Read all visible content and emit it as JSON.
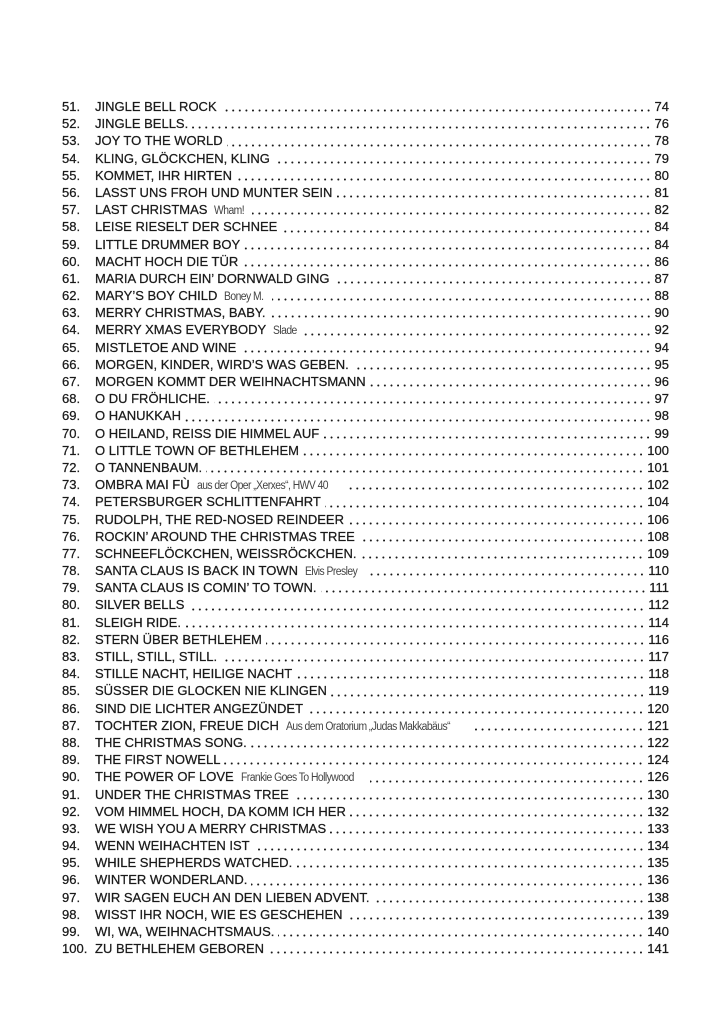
{
  "entries": [
    {
      "num": "51.",
      "title": "JINGLE BELL ROCK",
      "sub": "",
      "page": "74"
    },
    {
      "num": "52.",
      "title": "JINGLE BELLS.",
      "sub": "",
      "page": "76"
    },
    {
      "num": "53.",
      "title": "JOY TO THE WORLD",
      "sub": "",
      "page": "78"
    },
    {
      "num": "54.",
      "title": "KLING, GLÖCKCHEN, KLING",
      "sub": "",
      "page": "79"
    },
    {
      "num": "55.",
      "title": "KOMMET, IHR HIRTEN",
      "sub": "",
      "page": "80"
    },
    {
      "num": "56.",
      "title": "LASST UNS FROH UND MUNTER SEIN",
      "sub": "",
      "page": "81"
    },
    {
      "num": "57.",
      "title": "LAST CHRISTMAS",
      "sub": "Wham!",
      "page": "82"
    },
    {
      "num": "58.",
      "title": "LEISE RIESELT DER SCHNEE",
      "sub": "",
      "page": "84"
    },
    {
      "num": "59.",
      "title": "LITTLE DRUMMER BOY",
      "sub": "",
      "page": "84"
    },
    {
      "num": "60.",
      "title": "MACHT HOCH DIE TÜR",
      "sub": "",
      "page": "86"
    },
    {
      "num": "61.",
      "title": "MARIA DURCH EIN’ DORNWALD GING",
      "sub": "",
      "page": "87"
    },
    {
      "num": "62.",
      "title": "MARY’S BOY CHILD",
      "sub": "Boney M.",
      "page": "88"
    },
    {
      "num": "63.",
      "title": "MERRY CHRISTMAS, BABY.",
      "sub": "",
      "page": "90"
    },
    {
      "num": "64.",
      "title": "MERRY XMAS EVERYBODY",
      "sub": "Slade",
      "page": "92"
    },
    {
      "num": "65.",
      "title": "MISTLETOE AND WINE",
      "sub": "",
      "page": "94"
    },
    {
      "num": "66.",
      "title": "MORGEN, KINDER, WIRD’S WAS GEBEN.",
      "sub": "",
      "page": "95"
    },
    {
      "num": "67.",
      "title": "MORGEN KOMMT DER WEIHNACHTSMANN",
      "sub": "",
      "page": "96"
    },
    {
      "num": "68.",
      "title": "O DU FRÖHLICHE.",
      "sub": "",
      "page": "97"
    },
    {
      "num": "69.",
      "title": "O HANUKKAH",
      "sub": "",
      "page": "98"
    },
    {
      "num": "70.",
      "title": "O HEILAND, REISS DIE HIMMEL AUF",
      "sub": "",
      "page": "99"
    },
    {
      "num": "71.",
      "title": "O LITTLE TOWN OF BETHLEHEM",
      "sub": "",
      "page": "100"
    },
    {
      "num": "72.",
      "title": "O TANNENBAUM.",
      "sub": "",
      "page": "101"
    },
    {
      "num": "73.",
      "title": "OMBRA MAI FÙ",
      "sub": "aus der Oper „Xerxes“, HWV 40",
      "page": "102"
    },
    {
      "num": "74.",
      "title": "PETERSBURGER SCHLITTENFAHRT",
      "sub": "",
      "page": "104"
    },
    {
      "num": "75.",
      "title": "RUDOLPH, THE RED-NOSED REINDEER",
      "sub": "",
      "page": "106"
    },
    {
      "num": "76.",
      "title": "ROCKIN’ AROUND THE CHRISTMAS TREE",
      "sub": "",
      "page": "108"
    },
    {
      "num": "77.",
      "title": "SCHNEEFLÖCKCHEN, WEISSRÖCKCHEN.",
      "sub": "",
      "page": "109"
    },
    {
      "num": "78.",
      "title": "SANTA CLAUS IS BACK IN TOWN",
      "sub": "Elvis Presley",
      "page": "110"
    },
    {
      "num": "79.",
      "title": "SANTA CLAUS IS COMIN’ TO TOWN.",
      "sub": "",
      "page": "111"
    },
    {
      "num": "80.",
      "title": "SILVER BELLS",
      "sub": "",
      "page": "112"
    },
    {
      "num": "81.",
      "title": "SLEIGH RIDE.",
      "sub": "",
      "page": "114"
    },
    {
      "num": "82.",
      "title": "STERN ÜBER BETHLEHEM",
      "sub": "",
      "page": "116"
    },
    {
      "num": "83.",
      "title": "STILL, STILL, STILL.",
      "sub": "",
      "page": "117"
    },
    {
      "num": "84.",
      "title": "STILLE NACHT, HEILIGE NACHT",
      "sub": "",
      "page": "118"
    },
    {
      "num": "85.",
      "title": "SÜSSER DIE GLOCKEN NIE KLINGEN",
      "sub": "",
      "page": "119"
    },
    {
      "num": "86.",
      "title": "SIND DIE LICHTER ANGEZÜNDET",
      "sub": "",
      "page": "120"
    },
    {
      "num": "87.",
      "title": "TOCHTER ZION, FREUE DICH",
      "sub": "Aus dem Oratorium „Judas Makkabäus“",
      "page": "121"
    },
    {
      "num": "88.",
      "title": "THE CHRISTMAS SONG.",
      "sub": "",
      "page": "122"
    },
    {
      "num": "89.",
      "title": "THE FIRST NOWELL",
      "sub": "",
      "page": "124"
    },
    {
      "num": "90.",
      "title": "THE POWER OF LOVE",
      "sub": "Frankie Goes To Hollywood",
      "page": "126"
    },
    {
      "num": "91.",
      "title": "UNDER THE CHRISTMAS TREE",
      "sub": "",
      "page": "130"
    },
    {
      "num": "92.",
      "title": "VOM HIMMEL HOCH, DA KOMM ICH HER",
      "sub": "",
      "page": "132"
    },
    {
      "num": "93.",
      "title": "WE WISH YOU A MERRY CHRISTMAS",
      "sub": "",
      "page": "133"
    },
    {
      "num": "94.",
      "title": "WENN WEIHACHTEN IST",
      "sub": "",
      "page": "134"
    },
    {
      "num": "95.",
      "title": "WHILE SHEPHERDS WATCHED.",
      "sub": "",
      "page": "135"
    },
    {
      "num": "96.",
      "title": "WINTER WONDERLAND.",
      "sub": "",
      "page": "136"
    },
    {
      "num": "97.",
      "title": "WIR SAGEN EUCH AN DEN LIEBEN ADVENT.",
      "sub": "",
      "page": "138"
    },
    {
      "num": "98.",
      "title": "WISST IHR NOCH, WIE ES GESCHEHEN",
      "sub": "",
      "page": "139"
    },
    {
      "num": "99.",
      "title": "WI, WA, WEIHNACHTSMAUS.",
      "sub": "",
      "page": "140"
    },
    {
      "num": "100.",
      "title": "ZU BETHLEHEM GEBOREN",
      "sub": "",
      "page": "141"
    }
  ]
}
